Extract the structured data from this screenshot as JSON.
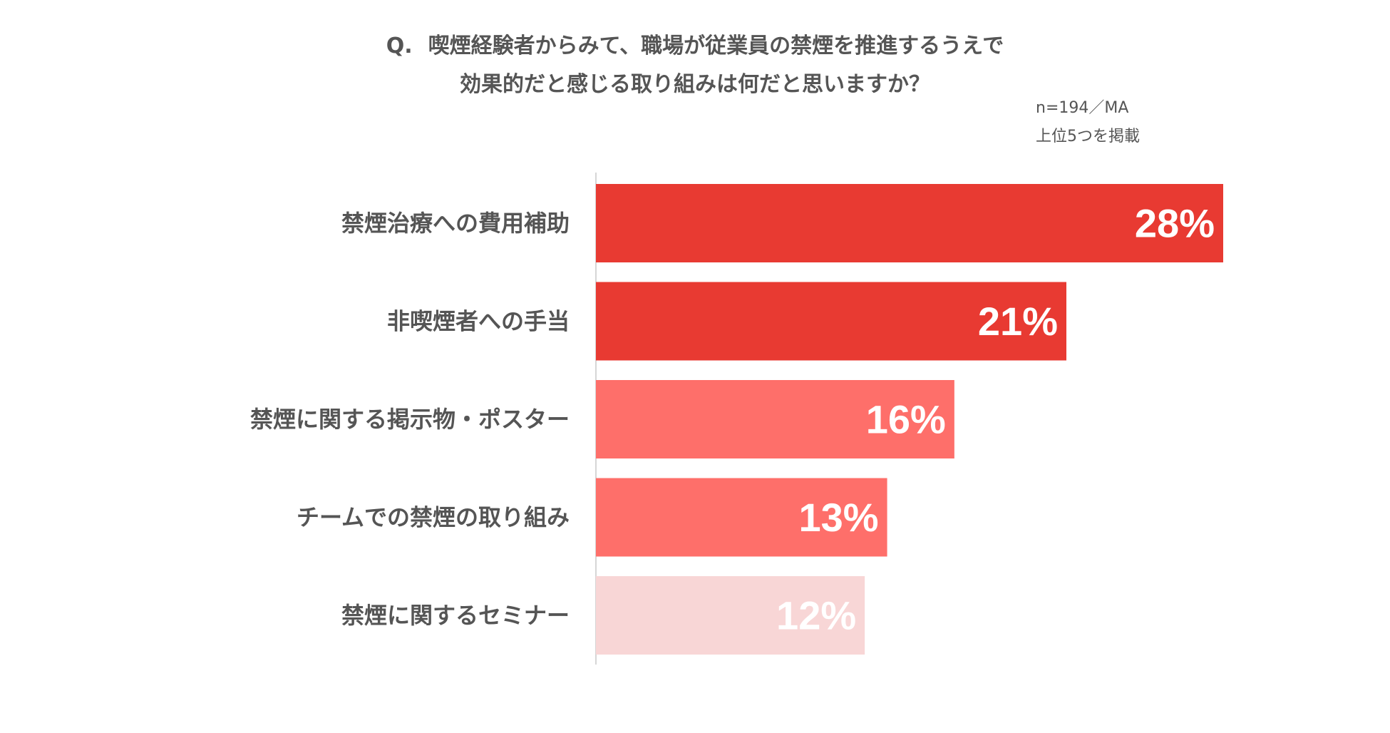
{
  "question": {
    "marker": "Q.",
    "line1": "喫煙経験者からみて、職場が従業員の禁煙を推進するうえで",
    "line2": "効果的だと感じる取り組みは何だと思いますか？"
  },
  "note": {
    "sample": "n=194／MA",
    "scope": "上位5つを掲載"
  },
  "chart_data": {
    "type": "bar",
    "orientation": "horizontal",
    "categories": [
      "禁煙治療への費用補助",
      "非喫煙者への手当",
      "禁煙に関する掲示物・ポスター",
      "チームでの禁煙の取り組み",
      "禁煙に関するセミナー"
    ],
    "values": [
      28,
      21,
      16,
      13,
      12
    ],
    "value_labels": [
      "28%",
      "21%",
      "16%",
      "13%",
      "12%"
    ],
    "unit": "%",
    "xlim": [
      0,
      30
    ],
    "colors": [
      "#e83a32",
      "#e83a32",
      "#fe6f6a",
      "#fe6f6a",
      "#f8d6d6"
    ],
    "grid": false,
    "legend": "none"
  }
}
